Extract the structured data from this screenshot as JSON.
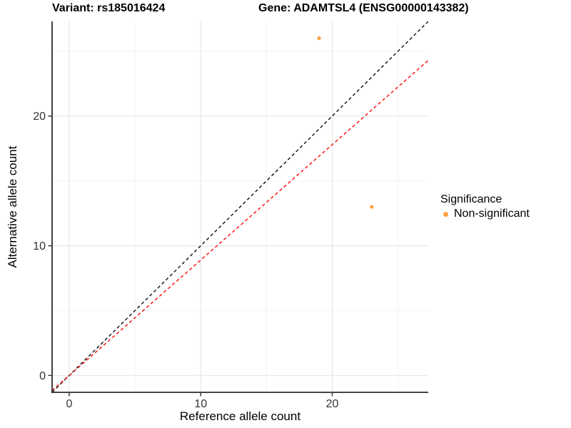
{
  "titles": {
    "variant": "Variant: rs185016424",
    "gene": "Gene: ADAMTSL4 (ENSG00000143382)"
  },
  "chart_data": {
    "type": "scatter",
    "xlabel": "Reference allele count",
    "ylabel": "Alternative allele count",
    "xlim": [
      -1.3,
      27.3
    ],
    "ylim": [
      -1.3,
      27.3
    ],
    "x_major_ticks": [
      0,
      10,
      20
    ],
    "y_major_ticks": [
      0,
      10,
      20
    ],
    "x_minor_gridlines": [
      5,
      15,
      25
    ],
    "y_minor_gridlines": [
      5,
      15,
      25
    ],
    "grid": true,
    "points": [
      {
        "x": 19,
        "y": 26,
        "series": "Non-significant"
      },
      {
        "x": 23,
        "y": 13,
        "series": "Non-significant"
      }
    ],
    "lines": [
      {
        "name": "identity-line",
        "slope": 1.0,
        "intercept": 0,
        "color": "#1a1a1a",
        "style": "dashed"
      },
      {
        "name": "expected-ratio-line",
        "slope": 0.89,
        "intercept": 0,
        "color": "#ff1414",
        "style": "dashed"
      }
    ],
    "legend": {
      "title": "Significance",
      "position": "right",
      "items": [
        {
          "label": "Non-significant",
          "color": "#F9A242"
        }
      ]
    }
  },
  "colors": {
    "axis_line": "#2b2b2b",
    "tick_label": "#333333",
    "grid_major": "#e4e4e4",
    "grid_minor": "#f2f2f2",
    "background": "#ffffff"
  }
}
